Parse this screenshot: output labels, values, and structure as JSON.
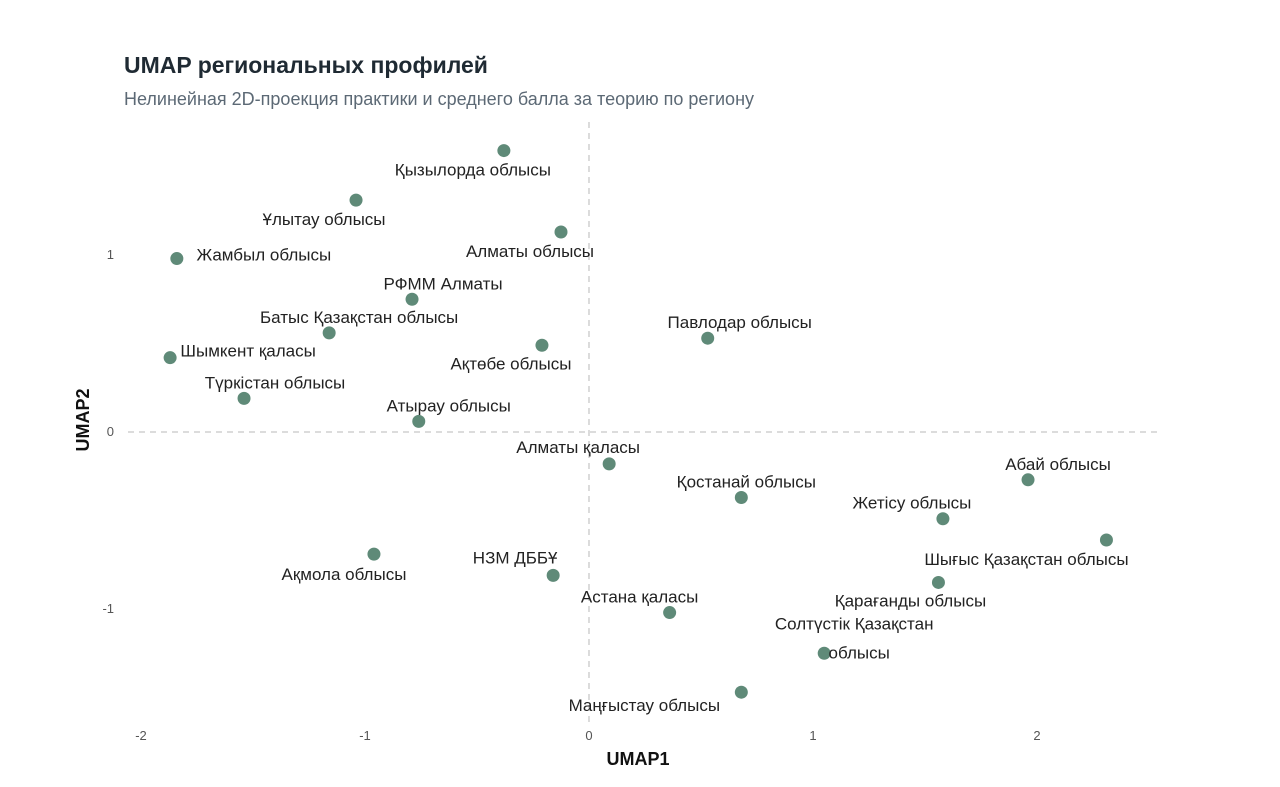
{
  "chart_data": {
    "type": "scatter",
    "title": "UMAP региональных профилей",
    "subtitle": "Нелинейная 2D-проекция практики и среднего балла за теорию по региону",
    "xlabel": "UMAP1",
    "ylabel": "UMAP2",
    "xlim": [
      -2.2,
      2.5
    ],
    "ylim": [
      -1.65,
      1.75
    ],
    "xticks": [
      -2,
      -1,
      0,
      1,
      2
    ],
    "yticks": [
      -1,
      0,
      1
    ],
    "grid": false,
    "reference_lines": {
      "x": 0,
      "y": 0
    },
    "point_color": "#5f8a78",
    "points": [
      {
        "label": "Қызылорда облысы",
        "x": -0.38,
        "y": 1.59
      },
      {
        "label": "Ұлытау облысы",
        "x": -1.04,
        "y": 1.31
      },
      {
        "label": "Алматы облысы",
        "x": -0.125,
        "y": 1.13
      },
      {
        "label": "Жамбыл облысы",
        "x": -1.84,
        "y": 0.98
      },
      {
        "label": "РФММ Алматы",
        "x": -0.79,
        "y": 0.75
      },
      {
        "label": "Батыс Қазақстан облысы",
        "x": -1.16,
        "y": 0.56
      },
      {
        "label": "Ақтөбе облысы",
        "x": -0.21,
        "y": 0.49
      },
      {
        "label": "Павлодар облысы",
        "x": 0.53,
        "y": 0.53
      },
      {
        "label": "Шымкент қаласы",
        "x": -1.87,
        "y": 0.42
      },
      {
        "label": "Түркістан облысы",
        "x": -1.54,
        "y": 0.19
      },
      {
        "label": "Атырау облысы",
        "x": -0.76,
        "y": 0.06
      },
      {
        "label": "Алматы қаласы",
        "x": 0.09,
        "y": -0.18
      },
      {
        "label": "Қостанай облысы",
        "x": 0.68,
        "y": -0.37
      },
      {
        "label": "Абай облысы",
        "x": 1.96,
        "y": -0.27
      },
      {
        "label": "Жетісу облысы",
        "x": 1.58,
        "y": -0.49
      },
      {
        "label": "Шығыс Қазақстан облысы",
        "x": 2.31,
        "y": -0.61
      },
      {
        "label": "Ақмола облысы",
        "x": -0.96,
        "y": -0.69
      },
      {
        "label": "НЗМ ДББҰ",
        "x": -0.16,
        "y": -0.81
      },
      {
        "label": "Қарағанды облысы",
        "x": 1.56,
        "y": -0.85
      },
      {
        "label": "Астана қаласы",
        "x": 0.36,
        "y": -1.02
      },
      {
        "label": "Солтүстік Қазақстан облысы",
        "x": 1.05,
        "y": -1.25
      },
      {
        "label": "Маңғыстау облысы",
        "x": 0.68,
        "y": -1.47
      }
    ]
  }
}
